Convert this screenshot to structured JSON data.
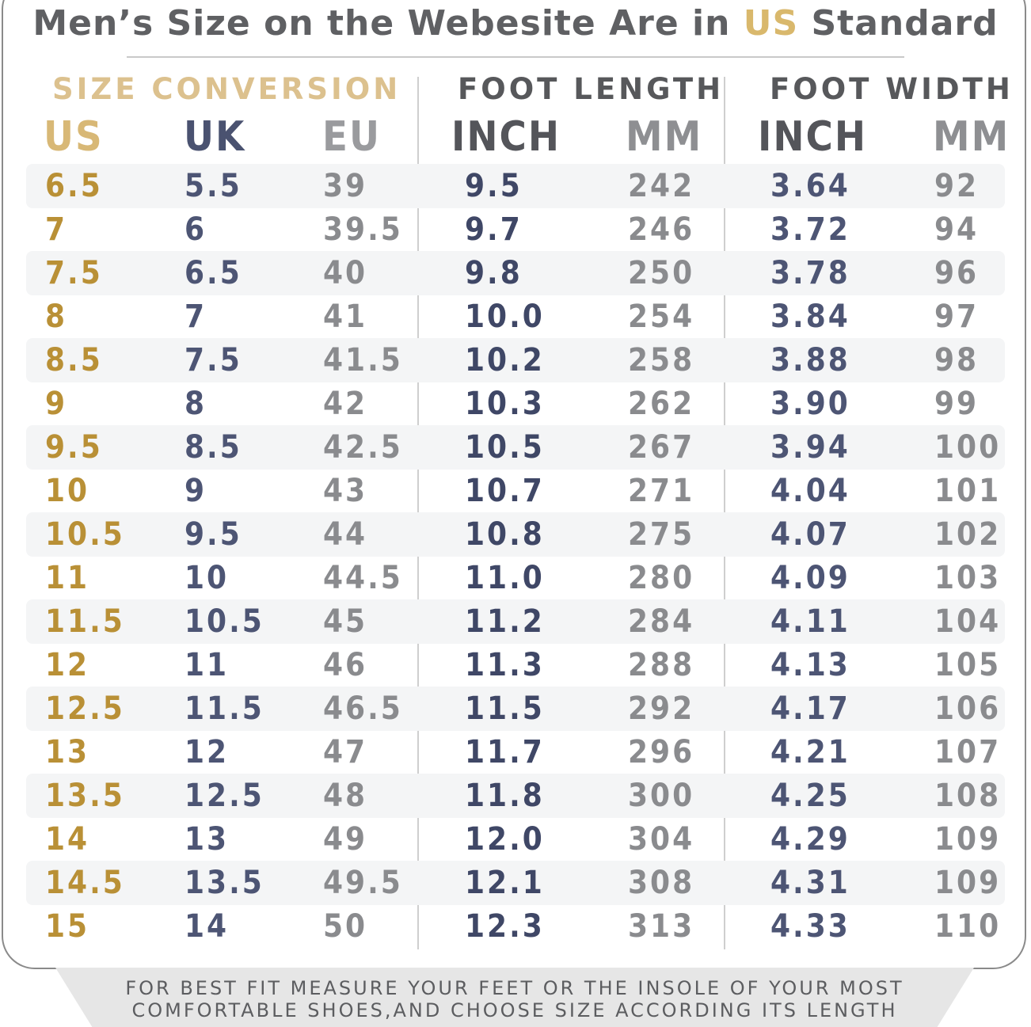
{
  "title": {
    "pre": "Men’s Size on the Webesite Are in ",
    "highlight": "US",
    "post": " Standard"
  },
  "groups": {
    "size_conversion": "SIZE CONVERSION",
    "foot_length": "FOOT LENGTH",
    "foot_width": "FOOT WIDTH"
  },
  "columns": {
    "us": "US",
    "uk": "UK",
    "eu": "EU",
    "len_inch": "INCH",
    "len_mm": "MM",
    "wid_inch": "INCH",
    "wid_mm": "MM"
  },
  "rows": [
    [
      "6.5",
      "5.5",
      "39",
      "9.5",
      "242",
      "3.64",
      "92"
    ],
    [
      "7",
      "6",
      "39.5",
      "9.7",
      "246",
      "3.72",
      "94"
    ],
    [
      "7.5",
      "6.5",
      "40",
      "9.8",
      "250",
      "3.78",
      "96"
    ],
    [
      "8",
      "7",
      "41",
      "10.0",
      "254",
      "3.84",
      "97"
    ],
    [
      "8.5",
      "7.5",
      "41.5",
      "10.2",
      "258",
      "3.88",
      "98"
    ],
    [
      "9",
      "8",
      "42",
      "10.3",
      "262",
      "3.90",
      "99"
    ],
    [
      "9.5",
      "8.5",
      "42.5",
      "10.5",
      "267",
      "3.94",
      "100"
    ],
    [
      "10",
      "9",
      "43",
      "10.7",
      "271",
      "4.04",
      "101"
    ],
    [
      "10.5",
      "9.5",
      "44",
      "10.8",
      "275",
      "4.07",
      "102"
    ],
    [
      "11",
      "10",
      "44.5",
      "11.0",
      "280",
      "4.09",
      "103"
    ],
    [
      "11.5",
      "10.5",
      "45",
      "11.2",
      "284",
      "4.11",
      "104"
    ],
    [
      "12",
      "11",
      "46",
      "11.3",
      "288",
      "4.13",
      "105"
    ],
    [
      "12.5",
      "11.5",
      "46.5",
      "11.5",
      "292",
      "4.17",
      "106"
    ],
    [
      "13",
      "12",
      "47",
      "11.7",
      "296",
      "4.21",
      "107"
    ],
    [
      "13.5",
      "12.5",
      "48",
      "11.8",
      "300",
      "4.25",
      "108"
    ],
    [
      "14",
      "13",
      "49",
      "12.0",
      "304",
      "4.29",
      "109"
    ],
    [
      "14.5",
      "13.5",
      "49.5",
      "12.1",
      "308",
      "4.31",
      "109"
    ],
    [
      "15",
      "14",
      "50",
      "12.3",
      "313",
      "4.33",
      "110"
    ]
  ],
  "footer": {
    "line1": "FOR BEST FIT MEASURE YOUR FEET OR THE INSOLE OF YOUR MOST",
    "line2": "COMFORTABLE SHOES,AND CHOOSE SIZE ACCORDING ITS LENGTH"
  },
  "colors": {
    "gold": "#b99036",
    "navy": "#4d5574",
    "gray": "#8a8b8e",
    "title_gray": "#5f6063"
  }
}
